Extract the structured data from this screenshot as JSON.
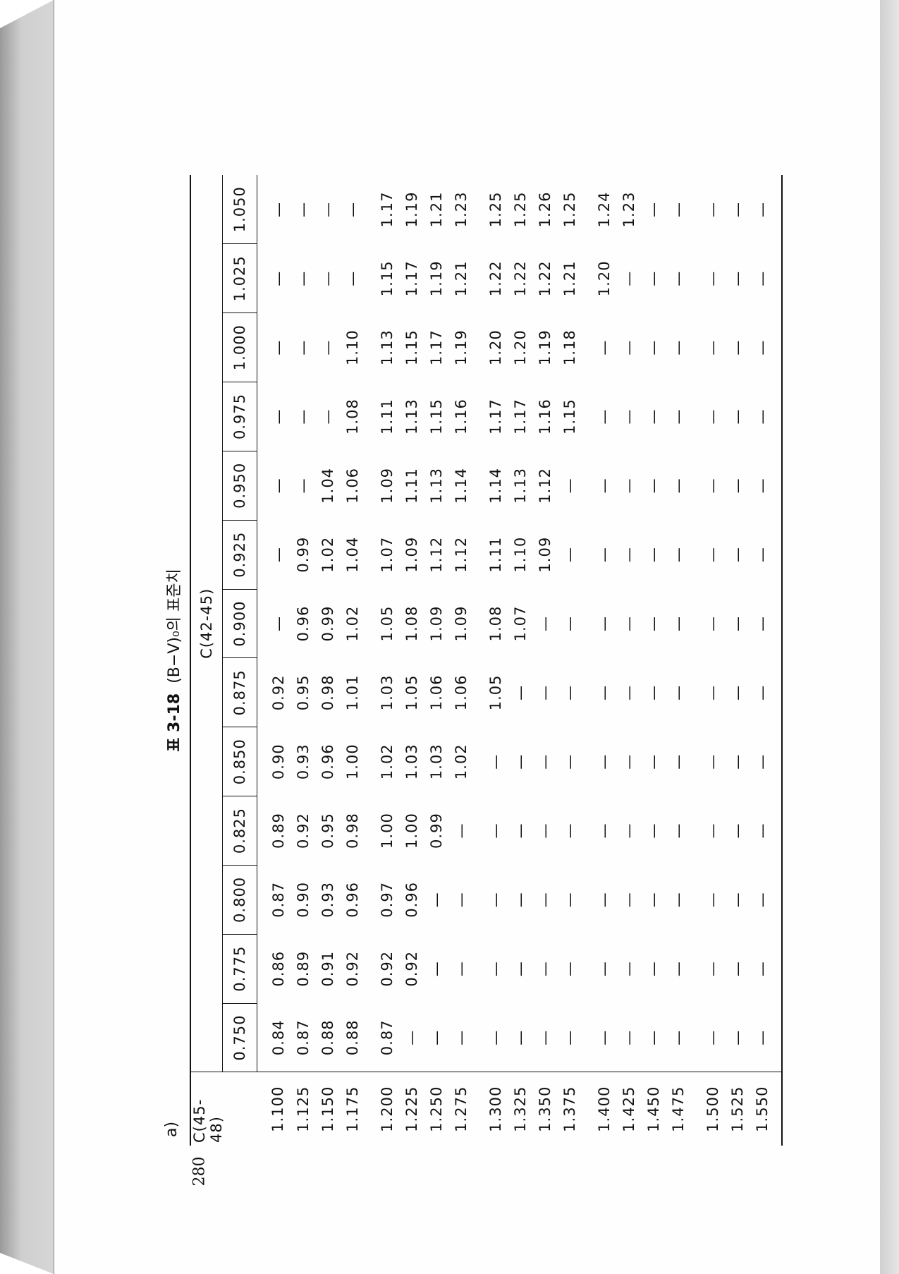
{
  "page_number": "280",
  "table": {
    "sub_label": "a)",
    "title_number": "표 3-18",
    "title_text": "(B−V)₀의 표준치",
    "row_axis_label": "C(45-48)",
    "col_axis_label": "C(42-45)",
    "columns": [
      "0.750",
      "0.775",
      "0.800",
      "0.825",
      "0.850",
      "0.875",
      "0.900",
      "0.925",
      "0.950",
      "0.975",
      "1.000",
      "1.025",
      "1.050"
    ],
    "rows": [
      {
        "label": "1.100",
        "values": [
          "0.84",
          "0.86",
          "0.87",
          "0.89",
          "0.90",
          "0.92",
          "—",
          "—",
          "—",
          "—",
          "—",
          "—",
          "—"
        ]
      },
      {
        "label": "1.125",
        "values": [
          "0.87",
          "0.89",
          "0.90",
          "0.92",
          "0.93",
          "0.95",
          "0.96",
          "0.99",
          "—",
          "—",
          "—",
          "—",
          "—"
        ]
      },
      {
        "label": "1.150",
        "values": [
          "0.88",
          "0.91",
          "0.93",
          "0.95",
          "0.96",
          "0.98",
          "0.99",
          "1.02",
          "1.04",
          "—",
          "—",
          "—",
          "—"
        ]
      },
      {
        "label": "1.175",
        "values": [
          "0.88",
          "0.92",
          "0.96",
          "0.98",
          "1.00",
          "1.01",
          "1.02",
          "1.04",
          "1.06",
          "1.08",
          "1.10",
          "—",
          "—"
        ]
      },
      {
        "label": "1.200",
        "values": [
          "0.87",
          "0.92",
          "0.97",
          "1.00",
          "1.02",
          "1.03",
          "1.05",
          "1.07",
          "1.09",
          "1.11",
          "1.13",
          "1.15",
          "1.17"
        ]
      },
      {
        "label": "1.225",
        "values": [
          "—",
          "0.92",
          "0.96",
          "1.00",
          "1.03",
          "1.05",
          "1.08",
          "1.09",
          "1.11",
          "1.13",
          "1.15",
          "1.17",
          "1.19"
        ]
      },
      {
        "label": "1.250",
        "values": [
          "—",
          "—",
          "—",
          "0.99",
          "1.03",
          "1.06",
          "1.09",
          "1.12",
          "1.13",
          "1.15",
          "1.17",
          "1.19",
          "1.21"
        ]
      },
      {
        "label": "1.275",
        "values": [
          "—",
          "—",
          "—",
          "—",
          "1.02",
          "1.06",
          "1.09",
          "1.12",
          "1.14",
          "1.16",
          "1.19",
          "1.21",
          "1.23"
        ]
      },
      {
        "label": "1.300",
        "values": [
          "—",
          "—",
          "—",
          "—",
          "—",
          "1.05",
          "1.08",
          "1.11",
          "1.14",
          "1.17",
          "1.20",
          "1.22",
          "1.25"
        ]
      },
      {
        "label": "1.325",
        "values": [
          "—",
          "—",
          "—",
          "—",
          "—",
          "—",
          "1.07",
          "1.10",
          "1.13",
          "1.17",
          "1.20",
          "1.22",
          "1.25"
        ]
      },
      {
        "label": "1.350",
        "values": [
          "—",
          "—",
          "—",
          "—",
          "—",
          "—",
          "—",
          "1.09",
          "1.12",
          "1.16",
          "1.19",
          "1.22",
          "1.26"
        ]
      },
      {
        "label": "1.375",
        "values": [
          "—",
          "—",
          "—",
          "—",
          "—",
          "—",
          "—",
          "—",
          "—",
          "1.15",
          "1.18",
          "1.21",
          "1.25"
        ]
      },
      {
        "label": "1.400",
        "values": [
          "—",
          "—",
          "—",
          "—",
          "—",
          "—",
          "—",
          "—",
          "—",
          "—",
          "—",
          "1.20",
          "1.24"
        ]
      },
      {
        "label": "1.425",
        "values": [
          "—",
          "—",
          "—",
          "—",
          "—",
          "—",
          "—",
          "—",
          "—",
          "—",
          "—",
          "—",
          "1.23"
        ]
      },
      {
        "label": "1.450",
        "values": [
          "—",
          "—",
          "—",
          "—",
          "—",
          "—",
          "—",
          "—",
          "—",
          "—",
          "—",
          "—",
          "—"
        ]
      },
      {
        "label": "1.475",
        "values": [
          "—",
          "—",
          "—",
          "—",
          "—",
          "—",
          "—",
          "—",
          "—",
          "—",
          "—",
          "—",
          "—"
        ]
      },
      {
        "label": "1.500",
        "values": [
          "—",
          "—",
          "—",
          "—",
          "—",
          "—",
          "—",
          "—",
          "—",
          "—",
          "—",
          "—",
          "—"
        ]
      },
      {
        "label": "1.525",
        "values": [
          "—",
          "—",
          "—",
          "—",
          "—",
          "—",
          "—",
          "—",
          "—",
          "—",
          "—",
          "—",
          "—"
        ]
      },
      {
        "label": "1.550",
        "values": [
          "—",
          "—",
          "—",
          "—",
          "—",
          "—",
          "—",
          "—",
          "—",
          "—",
          "—",
          "—",
          "—"
        ]
      }
    ]
  }
}
